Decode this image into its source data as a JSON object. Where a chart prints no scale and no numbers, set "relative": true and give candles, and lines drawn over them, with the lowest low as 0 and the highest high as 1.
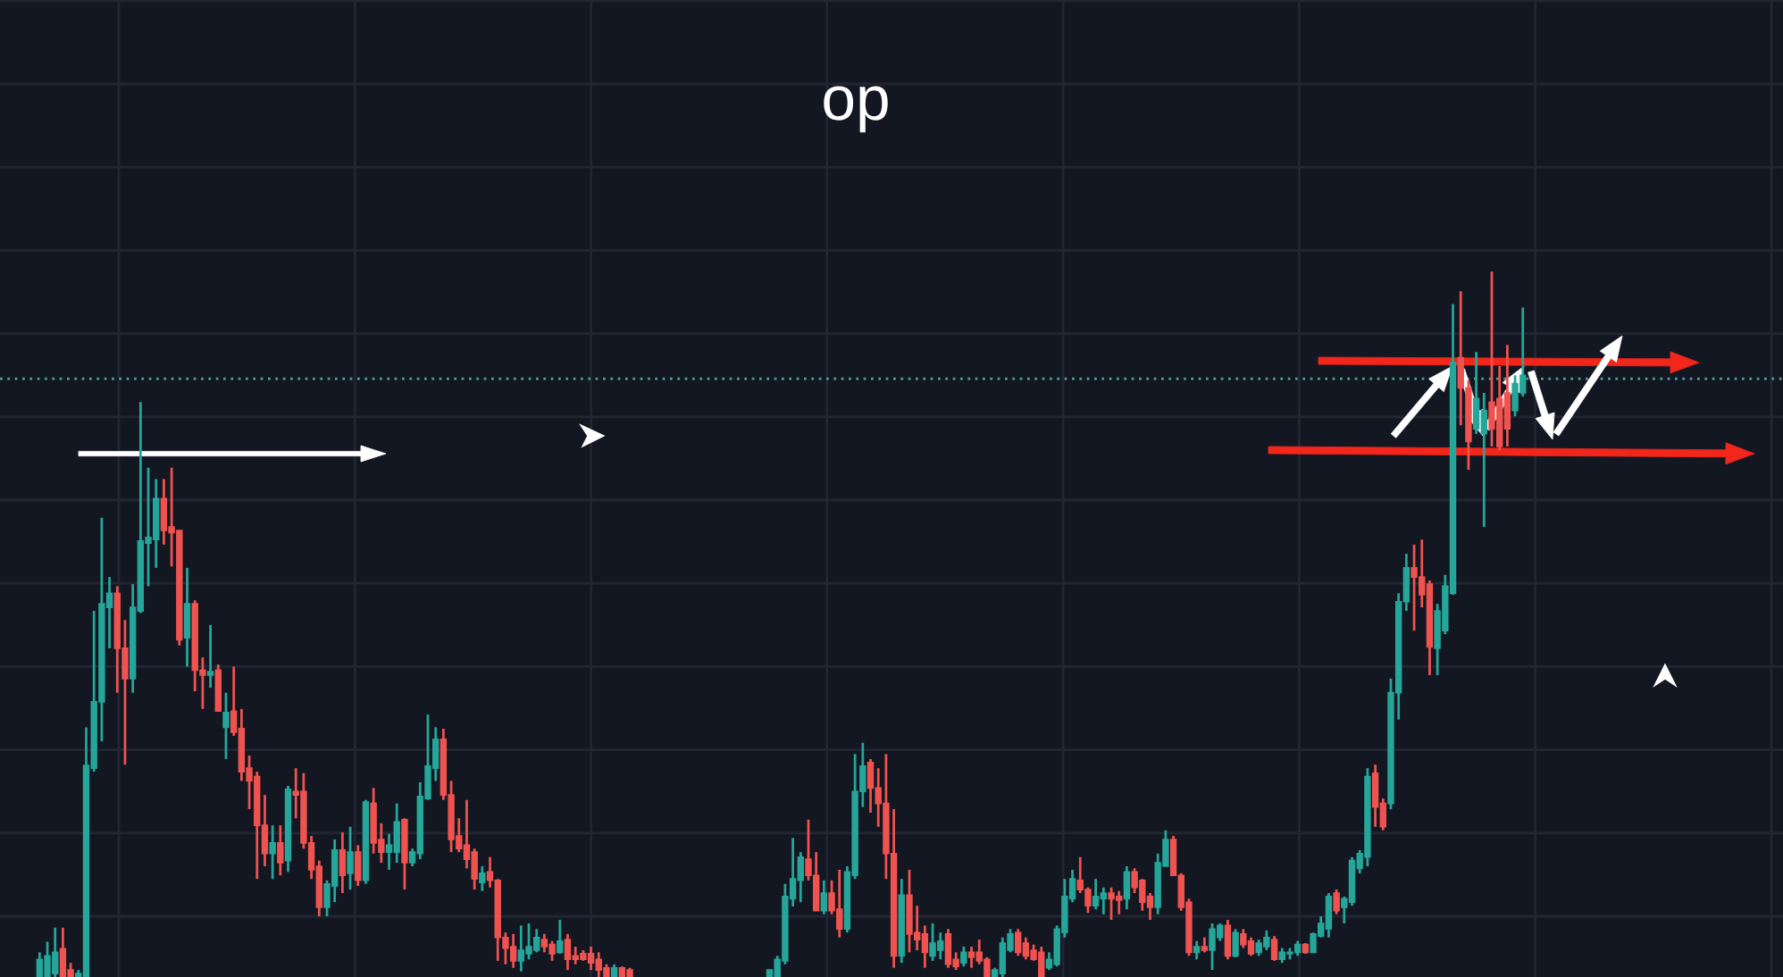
{
  "chart_data": {
    "type": "candlestick",
    "title": "op",
    "relative": true,
    "grid": true,
    "tick_labels": false,
    "categories": [
      null,
      null,
      null,
      null,
      null,
      null,
      null,
      null,
      null,
      null,
      null,
      null,
      null,
      null,
      null,
      null,
      null,
      null,
      null,
      null,
      null,
      null,
      null,
      null,
      null,
      null,
      null,
      null,
      null,
      null,
      null,
      null,
      null,
      null,
      null,
      null,
      null,
      null,
      null,
      null,
      null,
      null,
      null,
      null,
      null,
      null,
      null,
      null,
      null,
      null,
      null,
      null,
      null,
      null,
      null,
      null,
      null,
      null,
      null,
      null,
      null,
      null,
      null,
      null,
      null,
      null,
      null,
      null,
      null,
      null,
      null,
      null,
      null,
      null,
      null,
      null,
      null,
      null,
      null,
      null,
      null,
      null,
      null,
      null,
      null,
      null,
      null,
      null,
      null,
      null,
      null,
      null,
      null,
      null,
      null,
      null,
      null,
      null,
      null,
      null,
      null,
      null,
      null,
      null,
      null,
      null,
      null,
      null,
      null,
      null,
      null,
      null,
      null,
      null,
      null,
      null,
      null,
      null,
      null,
      null,
      null,
      null,
      null,
      null,
      null,
      null,
      null,
      null,
      null,
      null,
      null,
      null,
      null,
      null,
      null,
      null,
      null,
      null,
      null,
      null,
      null,
      null,
      null,
      null,
      null,
      null,
      null,
      null,
      null,
      null,
      null,
      null,
      null,
      null,
      null,
      null,
      null,
      null,
      null,
      null,
      null,
      null,
      null,
      null,
      null,
      null,
      null,
      null,
      null,
      null,
      null,
      null,
      null,
      null,
      null,
      null,
      null,
      null,
      null,
      null,
      null,
      null,
      null,
      null,
      null,
      null,
      null,
      null,
      null,
      null,
      null,
      null
    ],
    "ohlc": [
      [
        0,
        0.035,
        0,
        0.025
      ],
      [
        0,
        0.05,
        0,
        0.03
      ],
      [
        0.005,
        0.07,
        0,
        0.035
      ],
      [
        0.04,
        0.07,
        0,
        0
      ],
      [
        0.01,
        0.02,
        0,
        0
      ],
      [
        0,
        0.01,
        0,
        0.005
      ],
      [
        0,
        0.354,
        0,
        0.3
      ],
      [
        0.296,
        0.519,
        0.291,
        0.39
      ],
      [
        0.39,
        0.651,
        0.334,
        0.529
      ],
      [
        0.524,
        0.567,
        0.466,
        0.544
      ],
      [
        0.544,
        0.554,
        0.403,
        0.466
      ],
      [
        0.466,
        0.506,
        0.301,
        0.423
      ],
      [
        0.423,
        0.557,
        0.403,
        0.524
      ],
      [
        0.519,
        0.815,
        0.516,
        0.618
      ],
      [
        0.615,
        0.722,
        0.554,
        0.623
      ],
      [
        0.62,
        0.706,
        0.58,
        0.678
      ],
      [
        0.678,
        0.706,
        0.613,
        0.633
      ],
      [
        0.638,
        0.722,
        0.582,
        0.63
      ],
      [
        0.633,
        0.633,
        0.47,
        0.478
      ],
      [
        0.481,
        0.58,
        0.44,
        0.529
      ],
      [
        0.529,
        0.534,
        0.405,
        0.435
      ],
      [
        0.435,
        0.453,
        0.38,
        0.428
      ],
      [
        0.428,
        0.499,
        0.41,
        0.433
      ],
      [
        0.435,
        0.443,
        0.377,
        0.377
      ],
      [
        0.354,
        0.403,
        0.309,
        0.375
      ],
      [
        0.377,
        0.44,
        0.342,
        0.347
      ],
      [
        0.352,
        0.38,
        0.278,
        0.291
      ],
      [
        0.296,
        0.314,
        0.238,
        0.278
      ],
      [
        0.284,
        0.291,
        0.139,
        0.215
      ],
      [
        0.215,
        0.258,
        0.157,
        0.175
      ],
      [
        0.175,
        0.215,
        0.139,
        0.19
      ],
      [
        0.19,
        0.215,
        0.144,
        0.162
      ],
      [
        0.165,
        0.271,
        0.149,
        0.266
      ],
      [
        0.263,
        0.296,
        0.225,
        0.258
      ],
      [
        0.263,
        0.289,
        0.182,
        0.19
      ],
      [
        0.19,
        0.2,
        0.139,
        0.152
      ],
      [
        0.157,
        0.165,
        0.086,
        0.099
      ],
      [
        0.099,
        0.137,
        0.086,
        0.132
      ],
      [
        0.129,
        0.195,
        0.106,
        0.18
      ],
      [
        0.18,
        0.205,
        0.119,
        0.144
      ],
      [
        0.147,
        0.213,
        0.124,
        0.177
      ],
      [
        0.177,
        0.187,
        0.129,
        0.137
      ],
      [
        0.137,
        0.251,
        0.132,
        0.248
      ],
      [
        0.246,
        0.268,
        0.175,
        0.19
      ],
      [
        0.195,
        0.218,
        0.162,
        0.177
      ],
      [
        0.177,
        0.203,
        0.152,
        0.187
      ],
      [
        0.177,
        0.246,
        0.162,
        0.22
      ],
      [
        0.223,
        0.225,
        0.124,
        0.162
      ],
      [
        0.162,
        0.182,
        0.157,
        0.177
      ],
      [
        0.175,
        0.276,
        0.167,
        0.256
      ],
      [
        0.253,
        0.372,
        0.251,
        0.299
      ],
      [
        0.296,
        0.354,
        0.278,
        0.337
      ],
      [
        0.337,
        0.352,
        0.251,
        0.258
      ],
      [
        0.258,
        0.278,
        0.177,
        0.195
      ],
      [
        0.2,
        0.225,
        0.177,
        0.182
      ],
      [
        0.187,
        0.251,
        0.154,
        0.167
      ],
      [
        0.177,
        0.182,
        0.124,
        0.139
      ],
      [
        0.134,
        0.157,
        0.122,
        0.147
      ],
      [
        0.149,
        0.17,
        0.127,
        0.137
      ],
      [
        0.137,
        0.139,
        0.023,
        0.056
      ],
      [
        0.056,
        0.063,
        0.018,
        0.041
      ],
      [
        0.043,
        0.061,
        0.013,
        0.023
      ],
      [
        0.023,
        0.073,
        0.008,
        0.038
      ],
      [
        0.033,
        0.076,
        0.025,
        0.043
      ],
      [
        0.038,
        0.068,
        0.035,
        0.056
      ],
      [
        0.053,
        0.061,
        0.035,
        0.043
      ],
      [
        0.046,
        0.051,
        0.023,
        0.033
      ],
      [
        0.035,
        0.081,
        0.033,
        0.051
      ],
      [
        0.053,
        0.061,
        0.01,
        0.025
      ],
      [
        0.03,
        0.043,
        0.018,
        0.025
      ],
      [
        0.033,
        0.038,
        0.023,
        0.025
      ],
      [
        0.033,
        0.043,
        0.01,
        0.02
      ],
      [
        0.025,
        0.035,
        0,
        0.01
      ],
      [
        0.013,
        0.018,
        0,
        0
      ],
      [
        0,
        0.018,
        0,
        0.013
      ],
      [
        0.013,
        0.015,
        0,
        0
      ],
      [
        0.01,
        0.013,
        0,
        0
      ],
      null,
      null,
      null,
      null,
      null,
      null,
      null,
      null,
      null,
      null,
      null,
      null,
      null,
      null,
      null,
      null,
      null,
      [
        0,
        0.01,
        0,
        0.01
      ],
      [
        0,
        0.03,
        0,
        0.025
      ],
      [
        0.023,
        0.132,
        0.018,
        0.114
      ],
      [
        0.111,
        0.197,
        0.1,
        0.139
      ],
      [
        0.137,
        0.177,
        0.106,
        0.17
      ],
      [
        0.167,
        0.223,
        0.137,
        0.144
      ],
      [
        0.144,
        0.177,
        0.094,
        0.094
      ],
      [
        0.094,
        0.137,
        0.089,
        0.119
      ],
      [
        0.119,
        0.137,
        0.089,
        0.094
      ],
      [
        0.096,
        0.152,
        0.056,
        0.068
      ],
      [
        0.068,
        0.157,
        0.063,
        0.149
      ],
      [
        0.144,
        0.316,
        0.139,
        0.263
      ],
      [
        0.263,
        0.332,
        0.241,
        0.299
      ],
      [
        0.304,
        0.309,
        0.233,
        0.268
      ],
      [
        0.268,
        0.296,
        0.213,
        0.246
      ],
      [
        0.246,
        0.316,
        0.139,
        0.175
      ],
      [
        0.175,
        0.238,
        0.013,
        0.03
      ],
      [
        0.03,
        0.139,
        0.02,
        0.116
      ],
      [
        0.116,
        0.152,
        0.035,
        0.061
      ],
      [
        0.063,
        0.101,
        0.038,
        0.053
      ],
      [
        0.061,
        0.073,
        0.013,
        0.035
      ],
      [
        0.03,
        0.076,
        0.023,
        0.048
      ],
      [
        0.038,
        0.063,
        0.025,
        0.051
      ],
      [
        0.061,
        0.068,
        0.013,
        0.018
      ],
      [
        0.025,
        0.035,
        0.01,
        0.015
      ],
      [
        0.02,
        0.043,
        0.015,
        0.035
      ],
      [
        0.035,
        0.043,
        0.013,
        0.028
      ],
      [
        0.035,
        0.053,
        0.018,
        0.023
      ],
      [
        0.025,
        0.028,
        0,
        0
      ],
      [
        0,
        0.013,
        0,
        0.01
      ],
      [
        0.005,
        0.056,
        0,
        0.048
      ],
      [
        0.038,
        0.068,
        0.035,
        0.061
      ],
      [
        0.063,
        0.068,
        0.03,
        0.035
      ],
      [
        0.048,
        0.056,
        0.025,
        0.03
      ],
      [
        0.038,
        0.046,
        0.023,
        0.025
      ],
      [
        0.035,
        0.043,
        0,
        0
      ],
      [
        0.013,
        0.035,
        0.01,
        0.025
      ],
      [
        0.018,
        0.073,
        0.015,
        0.068
      ],
      [
        0.063,
        0.139,
        0.056,
        0.114
      ],
      [
        0.111,
        0.152,
        0.106,
        0.139
      ],
      [
        0.137,
        0.17,
        0.119,
        0.124
      ],
      [
        0.124,
        0.127,
        0.091,
        0.101
      ],
      [
        0.101,
        0.139,
        0.096,
        0.114
      ],
      [
        0.111,
        0.127,
        0.089,
        0.119
      ],
      [
        0.119,
        0.127,
        0.081,
        0.111
      ],
      [
        0.114,
        0.122,
        0.089,
        0.109
      ],
      [
        0.111,
        0.157,
        0.096,
        0.149
      ],
      [
        0.149,
        0.154,
        0.119,
        0.127
      ],
      [
        0.137,
        0.139,
        0.094,
        0.106
      ],
      [
        0.114,
        0.119,
        0.081,
        0.099
      ],
      [
        0.099,
        0.175,
        0.089,
        0.162
      ],
      [
        0.157,
        0.208,
        0.157,
        0.195
      ],
      [
        0.195,
        0.2,
        0.144,
        0.144
      ],
      [
        0.144,
        0.147,
        0.094,
        0.099
      ],
      [
        0.106,
        0.111,
        0.03,
        0.035
      ],
      [
        0.035,
        0.051,
        0.025,
        0.043
      ],
      [
        0.043,
        0.056,
        0.035,
        0.038
      ],
      [
        0.038,
        0.076,
        0.01,
        0.068
      ],
      [
        0.056,
        0.076,
        0.051,
        0.073
      ],
      [
        0.073,
        0.081,
        0.025,
        0.03
      ],
      [
        0.03,
        0.068,
        0.028,
        0.063
      ],
      [
        0.061,
        0.068,
        0.041,
        0.046
      ],
      [
        0.051,
        0.056,
        0.03,
        0.033
      ],
      [
        0.035,
        0.053,
        0.03,
        0.048
      ],
      [
        0.043,
        0.066,
        0.038,
        0.056
      ],
      [
        0.053,
        0.058,
        0.023,
        0.025
      ],
      [
        0.025,
        0.041,
        0.02,
        0.035
      ],
      [
        0.033,
        0.041,
        0.025,
        0.035
      ],
      [
        0.035,
        0.051,
        0.03,
        0.046
      ],
      [
        0.046,
        0.048,
        0.033,
        0.035
      ],
      [
        0.035,
        0.063,
        0.035,
        0.061
      ],
      [
        0.058,
        0.086,
        0.056,
        0.076
      ],
      [
        0.068,
        0.119,
        0.056,
        0.114
      ],
      [
        0.119,
        0.124,
        0.089,
        0.094
      ],
      [
        0.099,
        0.114,
        0.076,
        0.111
      ],
      [
        0.106,
        0.17,
        0.101,
        0.165
      ],
      [
        0.154,
        0.18,
        0.147,
        0.175
      ],
      [
        0.17,
        0.296,
        0.157,
        0.284
      ],
      [
        0.289,
        0.301,
        0.213,
        0.241
      ],
      [
        0.246,
        0.253,
        0.208,
        0.213
      ],
      [
        0.246,
        0.423,
        0.238,
        0.403
      ],
      [
        0.403,
        0.544,
        0.365,
        0.532
      ],
      [
        0.532,
        0.6,
        0.519,
        0.58
      ],
      [
        0.58,
        0.613,
        0.491,
        0.567
      ],
      [
        0.567,
        0.62,
        0.524,
        0.542
      ],
      [
        0.557,
        0.562,
        0.428,
        0.468
      ],
      [
        0.466,
        0.529,
        0.428,
        0.519
      ],
      [
        0.491,
        0.57,
        0.486,
        0.554
      ],
      [
        0.544,
        0.954,
        0.542,
        0.871
      ],
      [
        0.878,
        0.972,
        0.782,
        0.835
      ],
      [
        0.835,
        0.846,
        0.719,
        0.759
      ],
      [
        0.777,
        0.886,
        0.77,
        0.82
      ],
      [
        0.77,
        0.828,
        0.638,
        0.803
      ],
      [
        0.815,
        1.0,
        0.752,
        0.777
      ],
      [
        0.82,
        0.866,
        0.747,
        0.752
      ],
      [
        0.828,
        0.896,
        0.752,
        0.777
      ],
      [
        0.803,
        0.853,
        0.795,
        0.841
      ],
      [
        0.828,
        0.949,
        0.823,
        0.853
      ]
    ],
    "colors": [
      "#26a69a",
      "#26a69a",
      "#26a69a",
      "#ef5350",
      "#ef5350",
      "#26a69a",
      "#26a69a",
      "#26a69a",
      "#26a69a",
      "#26a69a",
      "#ef5350",
      "#ef5350",
      "#26a69a",
      "#26a69a",
      "#26a69a",
      "#26a69a",
      "#ef5350",
      "#ef5350",
      "#ef5350",
      "#26a69a",
      "#ef5350",
      "#ef5350",
      "#26a69a",
      "#ef5350",
      "#26a69a",
      "#ef5350",
      "#ef5350",
      "#ef5350",
      "#ef5350",
      "#ef5350",
      "#26a69a",
      "#ef5350",
      "#26a69a",
      "#ef5350",
      "#ef5350",
      "#ef5350",
      "#ef5350",
      "#26a69a",
      "#26a69a",
      "#ef5350",
      "#26a69a",
      "#ef5350",
      "#26a69a",
      "#ef5350",
      "#ef5350",
      "#26a69a",
      "#26a69a",
      "#ef5350",
      "#26a69a",
      "#26a69a",
      "#26a69a",
      "#26a69a",
      "#ef5350",
      "#ef5350",
      "#ef5350",
      "#ef5350",
      "#ef5350",
      "#26a69a",
      "#ef5350",
      "#ef5350",
      "#ef5350",
      "#ef5350",
      "#26a69a",
      "#26a69a",
      "#26a69a",
      "#ef5350",
      "#ef5350",
      "#26a69a",
      "#ef5350",
      "#ef5350",
      "#ef5350",
      "#ef5350",
      "#ef5350",
      "#ef5350",
      "#26a69a",
      "#ef5350",
      "#ef5350",
      null,
      null,
      null,
      null,
      null,
      null,
      null,
      null,
      null,
      null,
      null,
      null,
      null,
      null,
      null,
      null,
      null,
      "#26a69a",
      "#26a69a",
      "#26a69a",
      "#26a69a",
      "#26a69a",
      "#ef5350",
      "#ef5350",
      "#26a69a",
      "#ef5350",
      "#ef5350",
      "#26a69a",
      "#26a69a",
      "#26a69a",
      "#ef5350",
      "#ef5350",
      "#ef5350",
      "#ef5350",
      "#26a69a",
      "#ef5350",
      "#ef5350",
      "#ef5350",
      "#26a69a",
      "#26a69a",
      "#ef5350",
      "#ef5350",
      "#26a69a",
      "#ef5350",
      "#ef5350",
      "#ef5350",
      "#26a69a",
      "#26a69a",
      "#26a69a",
      "#ef5350",
      "#ef5350",
      "#ef5350",
      "#ef5350",
      "#26a69a",
      "#26a69a",
      "#26a69a",
      "#26a69a",
      "#ef5350",
      "#ef5350",
      "#26a69a",
      "#26a69a",
      "#ef5350",
      "#ef5350",
      "#26a69a",
      "#ef5350",
      "#ef5350",
      "#ef5350",
      "#26a69a",
      "#26a69a",
      "#ef5350",
      "#ef5350",
      "#ef5350",
      "#26a69a",
      "#ef5350",
      "#26a69a",
      "#26a69a",
      "#ef5350",
      "#26a69a",
      "#ef5350",
      "#ef5350",
      "#26a69a",
      "#26a69a",
      "#ef5350",
      "#26a69a",
      "#26a69a",
      "#26a69a",
      "#ef5350",
      "#26a69a",
      "#26a69a",
      "#26a69a",
      "#ef5350",
      "#26a69a",
      "#26a69a",
      "#26a69a",
      "#26a69a",
      "#ef5350",
      "#ef5350",
      "#26a69a",
      "#26a69a",
      "#26a69a",
      "#ef5350",
      "#ef5350",
      "#ef5350",
      "#26a69a",
      "#26a69a",
      "#26a69a",
      "#ef5350",
      "#ef5350",
      "#26a69a",
      "#26a69a",
      "#ef5350",
      "#ef5350",
      "#ef5350",
      "#26a69a",
      "#26a69a"
    ],
    "ref_lines": [
      {
        "axis": "y",
        "value": 0.848,
        "color": "#4f9ea0",
        "line_style": "dotted"
      }
    ]
  }
}
